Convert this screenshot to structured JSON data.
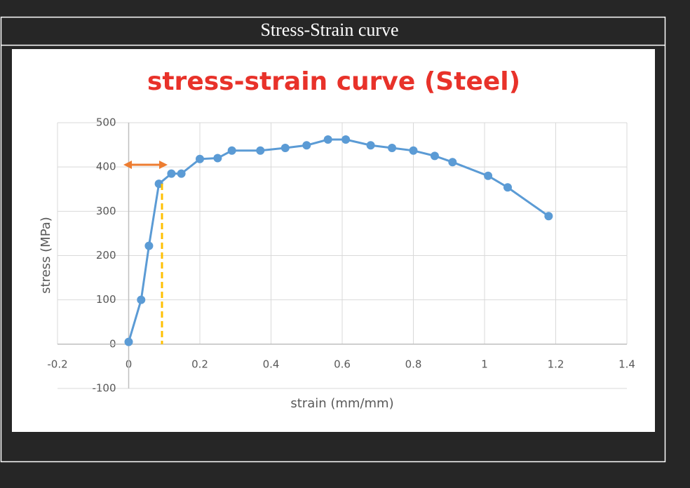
{
  "header": {
    "title": "Stress-Strain curve"
  },
  "chart_data": {
    "type": "line",
    "title": "stress-strain curve (Steel)",
    "x_label": "strain (mm/mm)",
    "y_label": "stress (MPa)",
    "x": [
      0,
      0.035,
      0.057,
      0.085,
      0.12,
      0.148,
      0.2,
      0.25,
      0.29,
      0.37,
      0.44,
      0.5,
      0.56,
      0.61,
      0.68,
      0.74,
      0.8,
      0.86,
      0.91,
      1.01,
      1.065,
      1.18
    ],
    "series": [
      {
        "name": "stress",
        "color": "#5b9bd5",
        "values": [
          5,
          100,
          222,
          362,
          385,
          385,
          418,
          420,
          437,
          437,
          443,
          449,
          462,
          462,
          449,
          443,
          437,
          425,
          411,
          380,
          354,
          289
        ]
      }
    ],
    "xlim": [
      -0.2,
      1.4
    ],
    "xticks": [
      -0.2,
      0,
      0.2,
      0.4,
      0.6,
      0.8,
      1,
      1.2,
      1.4
    ],
    "ylim": [
      -100,
      500
    ],
    "yticks": [
      -100,
      0,
      100,
      200,
      300,
      400,
      500
    ],
    "grid": true
  }
}
